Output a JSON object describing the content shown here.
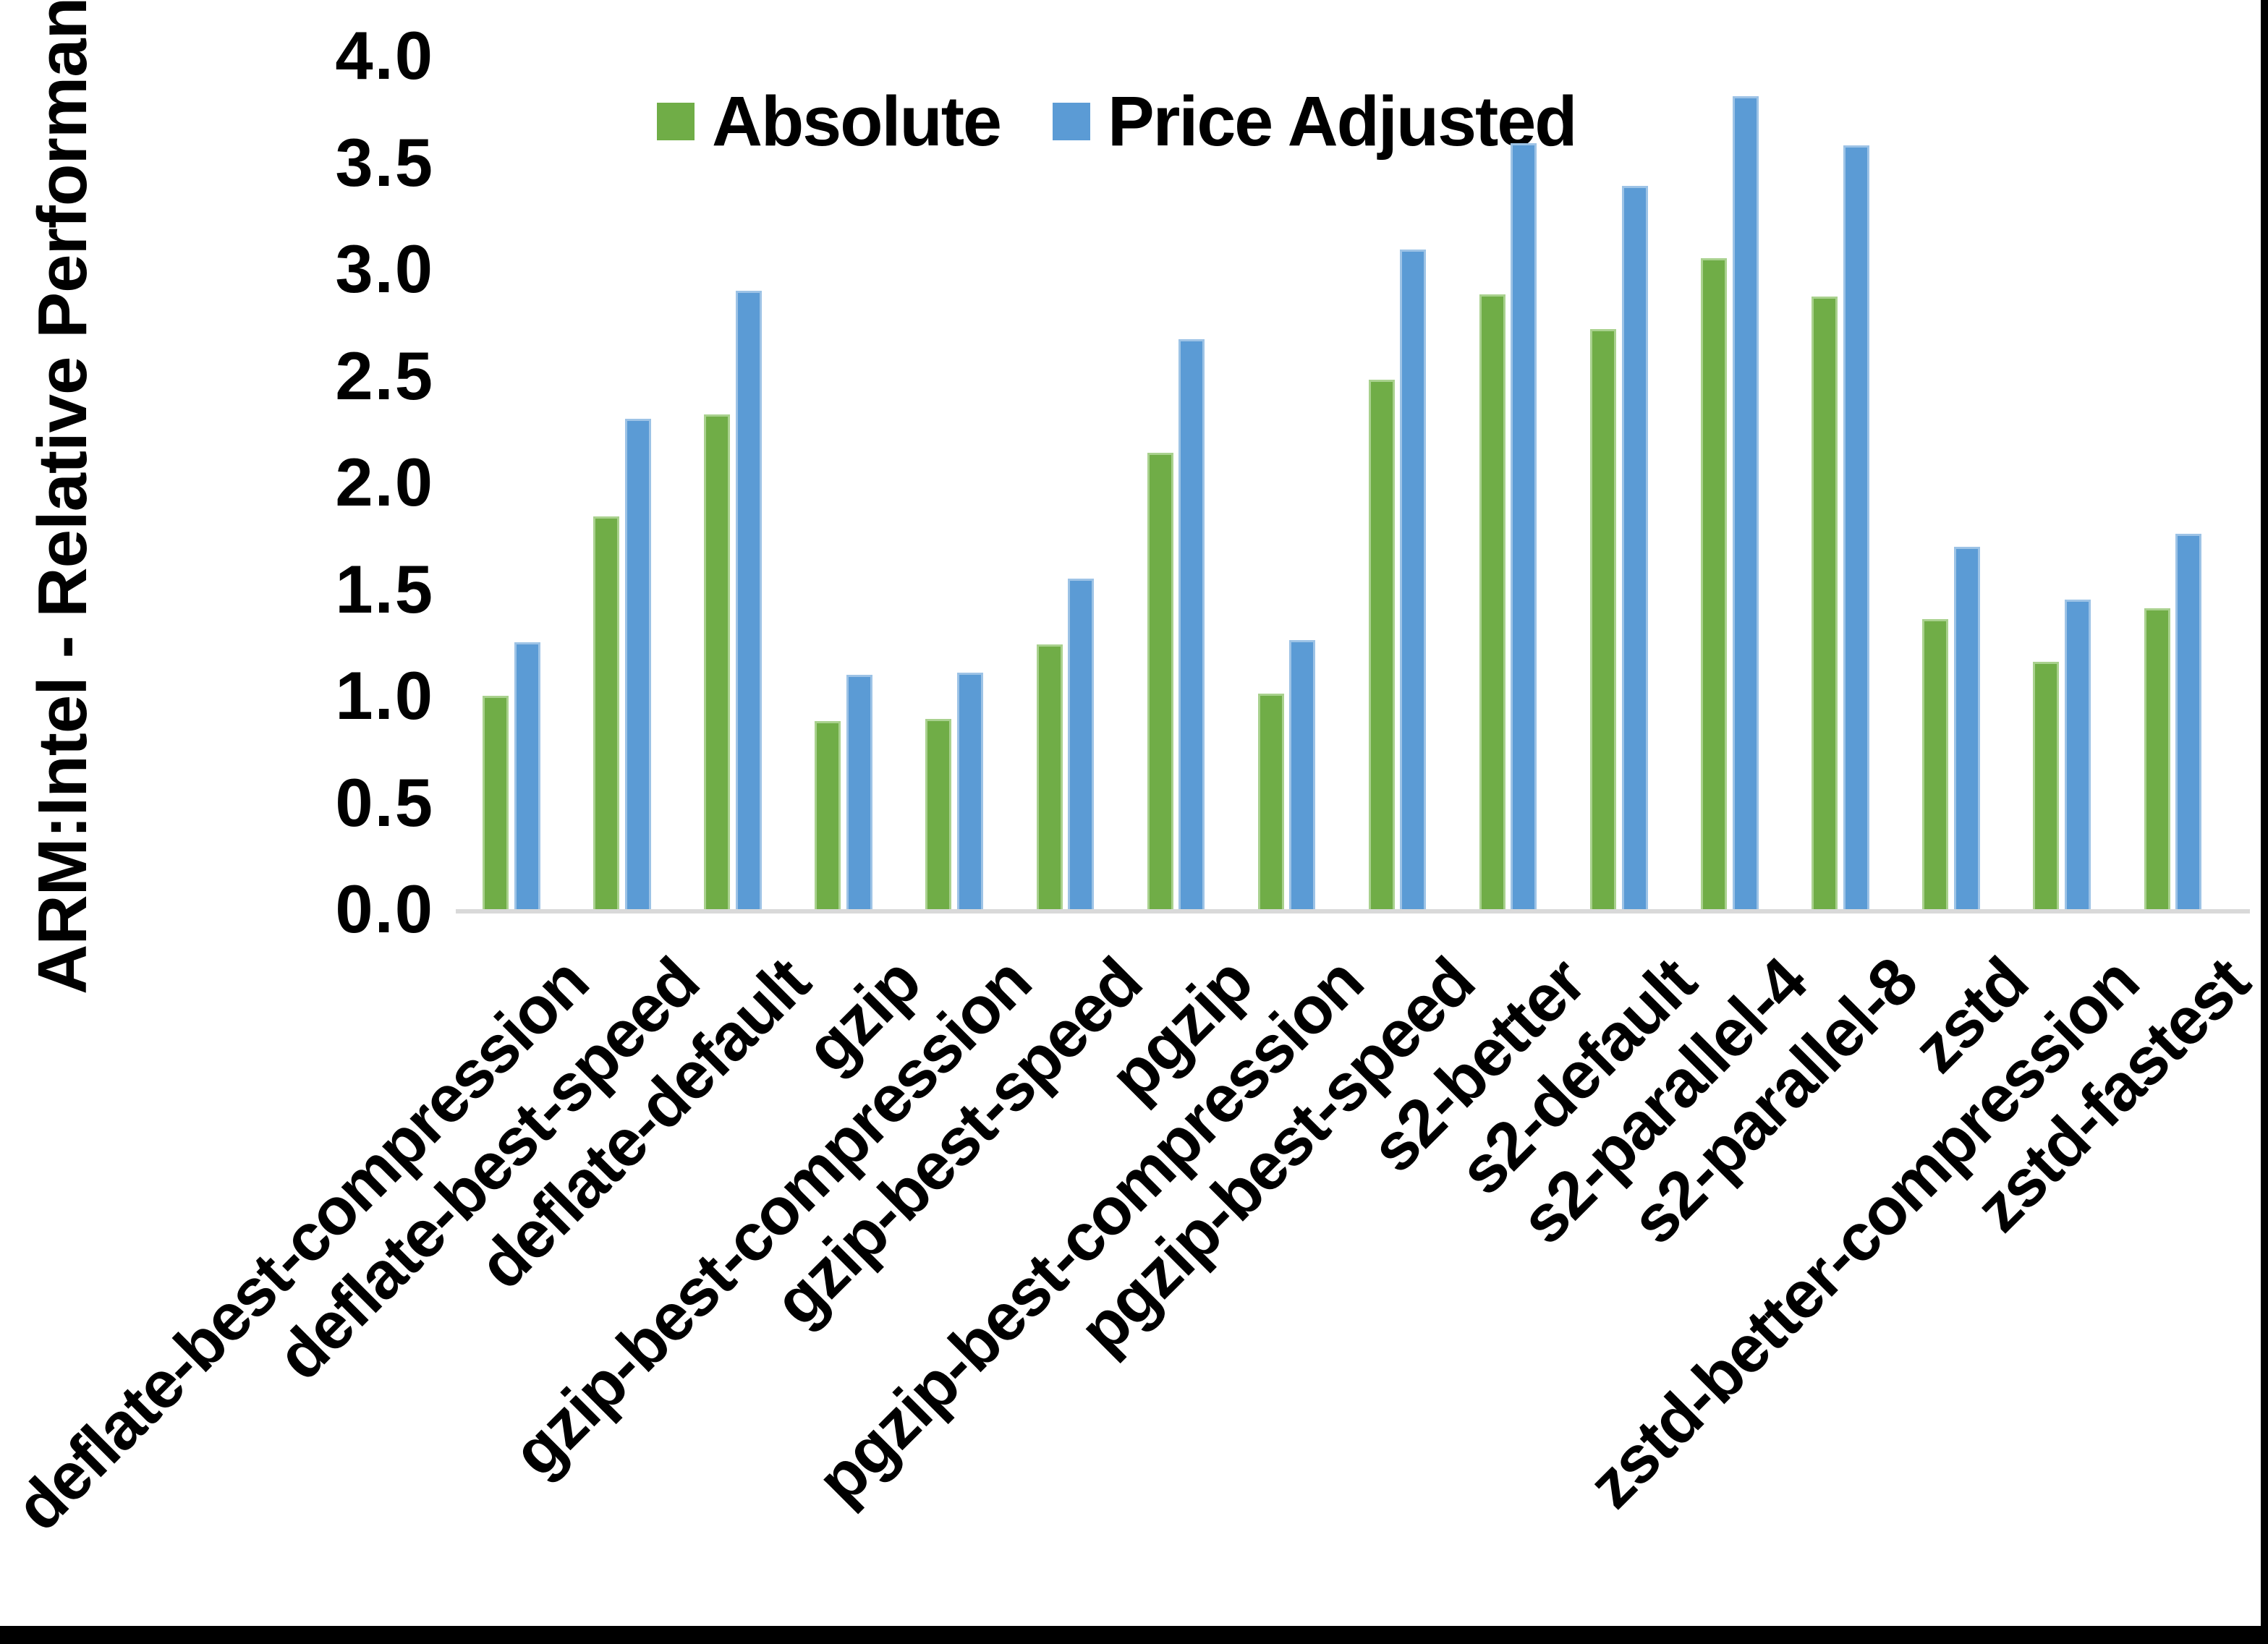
{
  "chart_data": {
    "type": "bar",
    "title": "",
    "ylabel": "ARM:Intel - Relative Performance",
    "xlabel": "",
    "ylim": [
      0.0,
      4.0
    ],
    "ytick_step": 0.5,
    "ytick_labels": [
      "0.0",
      "0.5",
      "1.0",
      "1.5",
      "2.0",
      "2.5",
      "3.0",
      "3.5",
      "4.0"
    ],
    "grid": "off",
    "legend_position": "top-center",
    "categories": [
      "deflate-best-compression",
      "deflate-best-speed",
      "deflate-default",
      "gzip",
      "gzip-best-compression",
      "gzip-best-speed",
      "pgzip",
      "pgzip-best-compression",
      "pgzip-best-speed",
      "s2-better",
      "s2-default",
      "s2-parallel-4",
      "s2-parallel-8",
      "zstd",
      "zstd-better-compression",
      "zstd-fastest"
    ],
    "series": [
      {
        "name": "Absolute",
        "color": "#70ad47",
        "values": [
          1.0,
          1.84,
          2.32,
          0.88,
          0.89,
          1.24,
          2.14,
          1.01,
          2.48,
          2.88,
          2.72,
          3.05,
          2.87,
          1.36,
          1.16,
          1.41
        ]
      },
      {
        "name": "Price Adjusted",
        "color": "#5b9bd5",
        "values": [
          1.25,
          2.3,
          2.9,
          1.1,
          1.11,
          1.55,
          2.67,
          1.26,
          3.09,
          3.59,
          3.39,
          3.81,
          3.58,
          1.7,
          1.45,
          1.76
        ]
      }
    ],
    "axis_line_color": "#d9d9d9",
    "text_color": "#000000"
  }
}
